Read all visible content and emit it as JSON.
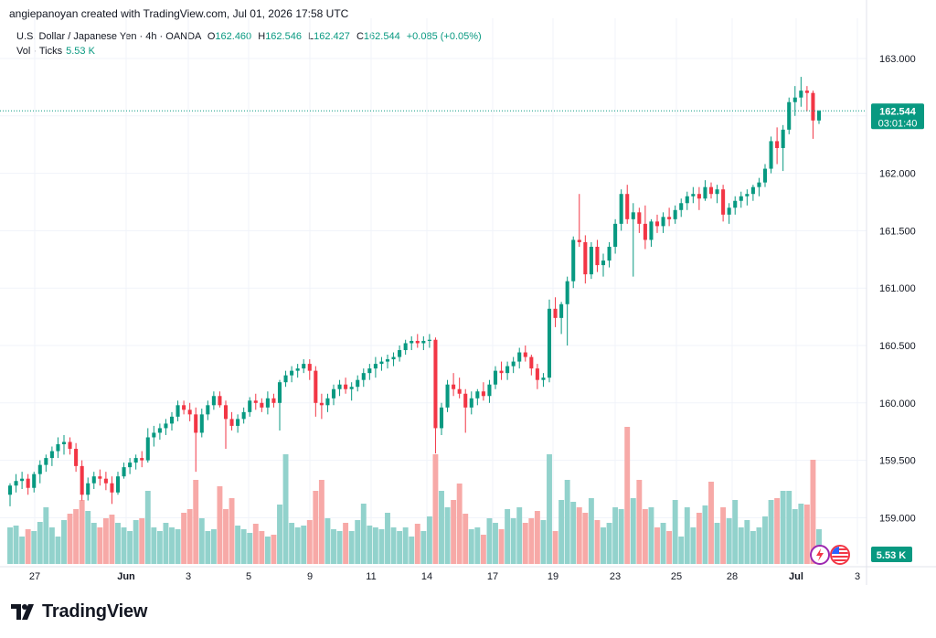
{
  "header": {
    "attribution": "angiepanoyan created with TradingView.com, Jul 01, 2026 17:58 UTC"
  },
  "legend": {
    "symbol": "U.S. Dollar / Japanese Yen · 4h · OANDA",
    "open_label": "O",
    "open": "162.460",
    "high_label": "H",
    "high": "162.546",
    "low_label": "L",
    "low": "162.427",
    "close_label": "C",
    "close": "162.544",
    "change": "+0.085 (+0.05%)",
    "vol_label": "Vol · Ticks",
    "vol_value": "5.53 K"
  },
  "price_tag": {
    "price": "162.544",
    "countdown": "03:01:40"
  },
  "volume_tag": "5.53 K",
  "brand": {
    "name": "TradingView"
  },
  "colors": {
    "up": "#089981",
    "down": "#f23645",
    "up_vol": "#92d2cc",
    "down_vol": "#f7a9a7",
    "grid": "#f0f3fa",
    "text": "#131722"
  },
  "chart_data": {
    "type": "candlestick",
    "timeframe": "4h",
    "ylim": [
      158.6,
      163.2
    ],
    "yticks": [
      "163.000",
      "162.500",
      "162.000",
      "161.500",
      "161.000",
      "160.500",
      "160.000",
      "159.500",
      "159.000"
    ],
    "xticks": [
      "27",
      "Jun",
      "3",
      "5",
      "9",
      "11",
      "14",
      "17",
      "19",
      "23",
      "25",
      "28",
      "Jul",
      "3"
    ],
    "volume_ylim": [
      0,
      150
    ],
    "candles": [
      [
        159.2,
        159.3,
        159.1,
        159.28,
        40
      ],
      [
        159.28,
        159.38,
        159.22,
        159.32,
        42
      ],
      [
        159.32,
        159.4,
        159.25,
        159.34,
        30
      ],
      [
        159.34,
        159.38,
        159.2,
        159.26,
        38
      ],
      [
        159.26,
        159.4,
        159.22,
        159.38,
        36
      ],
      [
        159.38,
        159.5,
        159.3,
        159.46,
        46
      ],
      [
        159.46,
        159.55,
        159.4,
        159.52,
        62
      ],
      [
        159.52,
        159.62,
        159.45,
        159.58,
        40
      ],
      [
        159.58,
        159.7,
        159.52,
        159.64,
        30
      ],
      [
        159.64,
        159.72,
        159.55,
        159.66,
        48
      ],
      [
        159.66,
        159.7,
        159.55,
        159.6,
        55
      ],
      [
        159.6,
        159.65,
        159.4,
        159.45,
        60
      ],
      [
        159.45,
        159.5,
        159.15,
        159.2,
        70
      ],
      [
        159.2,
        159.35,
        159.15,
        159.3,
        58
      ],
      [
        159.3,
        159.4,
        159.25,
        159.36,
        45
      ],
      [
        159.36,
        159.42,
        159.28,
        159.34,
        40
      ],
      [
        159.34,
        159.4,
        159.24,
        159.3,
        50
      ],
      [
        159.3,
        159.36,
        159.12,
        159.22,
        54
      ],
      [
        159.22,
        159.4,
        159.2,
        159.36,
        45
      ],
      [
        159.36,
        159.48,
        159.34,
        159.44,
        40
      ],
      [
        159.44,
        159.52,
        159.38,
        159.48,
        36
      ],
      [
        159.48,
        159.55,
        159.42,
        159.52,
        48
      ],
      [
        159.52,
        159.58,
        159.44,
        159.5,
        50
      ],
      [
        159.5,
        159.78,
        159.48,
        159.7,
        80
      ],
      [
        159.7,
        159.8,
        159.62,
        159.74,
        40
      ],
      [
        159.74,
        159.82,
        159.68,
        159.78,
        36
      ],
      [
        159.78,
        159.86,
        159.72,
        159.82,
        45
      ],
      [
        159.82,
        159.92,
        159.76,
        159.88,
        40
      ],
      [
        159.88,
        160.02,
        159.84,
        159.98,
        38
      ],
      [
        159.98,
        160.02,
        159.9,
        159.94,
        56
      ],
      [
        159.94,
        160.0,
        159.84,
        159.9,
        60
      ],
      [
        159.9,
        159.96,
        159.4,
        159.74,
        92
      ],
      [
        159.74,
        159.95,
        159.7,
        159.9,
        50
      ],
      [
        159.9,
        160.02,
        159.85,
        159.98,
        36
      ],
      [
        159.98,
        160.1,
        159.94,
        160.06,
        38
      ],
      [
        160.06,
        160.1,
        159.96,
        159.98,
        85
      ],
      [
        159.98,
        160.02,
        159.6,
        159.86,
        60
      ],
      [
        159.86,
        159.92,
        159.76,
        159.8,
        72
      ],
      [
        159.8,
        159.9,
        159.74,
        159.86,
        42
      ],
      [
        159.86,
        159.96,
        159.82,
        159.92,
        38
      ],
      [
        159.92,
        160.05,
        159.88,
        160.02,
        34
      ],
      [
        160.02,
        160.08,
        159.94,
        160.0,
        44
      ],
      [
        160.0,
        160.04,
        159.92,
        159.96,
        36
      ],
      [
        159.96,
        160.1,
        159.9,
        160.04,
        30
      ],
      [
        160.04,
        160.08,
        159.96,
        160.0,
        32
      ],
      [
        160.0,
        160.2,
        159.76,
        160.18,
        65
      ],
      [
        160.18,
        160.28,
        160.14,
        160.24,
        120
      ],
      [
        160.24,
        160.32,
        160.18,
        160.28,
        45
      ],
      [
        160.28,
        160.34,
        160.22,
        160.3,
        40
      ],
      [
        160.3,
        160.38,
        160.26,
        160.34,
        42
      ],
      [
        160.34,
        160.38,
        160.2,
        160.28,
        48
      ],
      [
        160.28,
        160.32,
        159.88,
        160.0,
        80
      ],
      [
        160.0,
        160.08,
        159.86,
        159.98,
        92
      ],
      [
        159.98,
        160.08,
        159.92,
        160.04,
        50
      ],
      [
        160.04,
        160.16,
        159.98,
        160.12,
        38
      ],
      [
        160.12,
        160.2,
        160.06,
        160.16,
        36
      ],
      [
        160.16,
        160.22,
        160.08,
        160.12,
        45
      ],
      [
        160.12,
        160.18,
        160.02,
        160.14,
        36
      ],
      [
        160.14,
        160.24,
        160.1,
        160.2,
        48
      ],
      [
        160.2,
        160.3,
        160.14,
        160.26,
        66
      ],
      [
        160.26,
        160.34,
        160.2,
        160.3,
        42
      ],
      [
        160.3,
        160.4,
        160.22,
        160.34,
        40
      ],
      [
        160.34,
        160.4,
        160.28,
        160.36,
        38
      ],
      [
        160.36,
        160.42,
        160.3,
        160.38,
        56
      ],
      [
        160.38,
        160.44,
        160.32,
        160.4,
        40
      ],
      [
        160.4,
        160.5,
        160.36,
        160.46,
        36
      ],
      [
        160.46,
        160.55,
        160.42,
        160.52,
        40
      ],
      [
        160.52,
        160.58,
        160.46,
        160.54,
        30
      ],
      [
        160.54,
        160.6,
        160.48,
        160.52,
        44
      ],
      [
        160.52,
        160.58,
        160.46,
        160.54,
        36
      ],
      [
        160.54,
        160.6,
        160.48,
        160.55,
        52
      ],
      [
        160.55,
        160.57,
        159.56,
        159.78,
        120
      ],
      [
        159.78,
        160.0,
        159.72,
        159.96,
        80
      ],
      [
        159.96,
        160.2,
        159.92,
        160.16,
        62
      ],
      [
        160.16,
        160.26,
        160.06,
        160.12,
        70
      ],
      [
        160.12,
        160.22,
        160.04,
        160.08,
        88
      ],
      [
        160.08,
        160.12,
        159.74,
        159.96,
        55
      ],
      [
        159.96,
        160.1,
        159.9,
        160.04,
        38
      ],
      [
        160.04,
        160.12,
        159.98,
        160.1,
        40
      ],
      [
        160.1,
        160.18,
        160.02,
        160.06,
        32
      ],
      [
        160.06,
        160.2,
        160.0,
        160.16,
        50
      ],
      [
        160.16,
        160.32,
        160.12,
        160.28,
        45
      ],
      [
        160.28,
        160.36,
        160.2,
        160.26,
        38
      ],
      [
        160.26,
        160.36,
        160.2,
        160.32,
        60
      ],
      [
        160.32,
        160.4,
        160.26,
        160.36,
        50
      ],
      [
        160.36,
        160.48,
        160.3,
        160.44,
        62
      ],
      [
        160.44,
        160.5,
        160.36,
        160.4,
        45
      ],
      [
        160.4,
        160.42,
        160.24,
        160.3,
        50
      ],
      [
        160.3,
        160.34,
        160.12,
        160.2,
        58
      ],
      [
        160.2,
        160.26,
        160.14,
        160.22,
        48
      ],
      [
        160.22,
        160.9,
        160.18,
        160.82,
        120
      ],
      [
        160.82,
        160.92,
        160.66,
        160.74,
        36
      ],
      [
        160.74,
        160.88,
        160.6,
        160.86,
        70
      ],
      [
        160.86,
        161.1,
        160.5,
        161.06,
        92
      ],
      [
        161.06,
        161.45,
        161.0,
        161.42,
        68
      ],
      [
        161.42,
        161.82,
        161.36,
        161.4,
        62
      ],
      [
        161.4,
        161.46,
        161.04,
        161.12,
        56
      ],
      [
        161.12,
        161.4,
        161.08,
        161.36,
        72
      ],
      [
        161.36,
        161.42,
        161.14,
        161.2,
        48
      ],
      [
        161.2,
        161.3,
        161.1,
        161.24,
        40
      ],
      [
        161.24,
        161.4,
        161.18,
        161.36,
        45
      ],
      [
        161.36,
        161.6,
        161.3,
        161.56,
        62
      ],
      [
        161.56,
        161.86,
        161.5,
        161.82,
        60
      ],
      [
        161.82,
        161.9,
        161.56,
        161.6,
        150
      ],
      [
        161.6,
        161.74,
        161.1,
        161.66,
        72
      ],
      [
        161.66,
        161.7,
        161.48,
        161.56,
        92
      ],
      [
        161.56,
        161.72,
        161.34,
        161.42,
        60
      ],
      [
        161.42,
        161.6,
        161.36,
        161.58,
        62
      ],
      [
        161.58,
        161.64,
        161.48,
        161.54,
        40
      ],
      [
        161.54,
        161.66,
        161.48,
        161.62,
        45
      ],
      [
        161.62,
        161.7,
        161.54,
        161.6,
        36
      ],
      [
        161.6,
        161.72,
        161.56,
        161.68,
        70
      ],
      [
        161.68,
        161.78,
        161.62,
        161.74,
        30
      ],
      [
        161.74,
        161.84,
        161.68,
        161.8,
        62
      ],
      [
        161.8,
        161.88,
        161.74,
        161.82,
        40
      ],
      [
        161.82,
        161.88,
        161.68,
        161.78,
        56
      ],
      [
        161.78,
        161.94,
        161.76,
        161.88,
        64
      ],
      [
        161.88,
        161.92,
        161.78,
        161.82,
        90
      ],
      [
        161.82,
        161.9,
        161.74,
        161.86,
        45
      ],
      [
        161.86,
        161.9,
        161.58,
        161.64,
        62
      ],
      [
        161.64,
        161.74,
        161.56,
        161.7,
        50
      ],
      [
        161.7,
        161.8,
        161.64,
        161.76,
        70
      ],
      [
        161.76,
        161.84,
        161.7,
        161.8,
        40
      ],
      [
        161.8,
        161.86,
        161.72,
        161.82,
        48
      ],
      [
        161.82,
        161.9,
        161.76,
        161.88,
        36
      ],
      [
        161.88,
        161.96,
        161.8,
        161.92,
        40
      ],
      [
        161.92,
        162.08,
        161.88,
        162.04,
        52
      ],
      [
        162.04,
        162.32,
        162.0,
        162.28,
        70
      ],
      [
        162.28,
        162.4,
        162.08,
        162.22,
        72
      ],
      [
        162.22,
        162.42,
        162.02,
        162.38,
        80
      ],
      [
        162.38,
        162.66,
        162.34,
        162.62,
        80
      ],
      [
        162.62,
        162.76,
        162.5,
        162.66,
        60
      ],
      [
        162.66,
        162.84,
        162.58,
        162.72,
        66
      ],
      [
        162.72,
        162.76,
        162.54,
        162.7,
        65
      ],
      [
        162.7,
        162.72,
        162.3,
        162.46,
        114
      ],
      [
        162.46,
        162.55,
        162.43,
        162.544,
        38
      ]
    ]
  }
}
